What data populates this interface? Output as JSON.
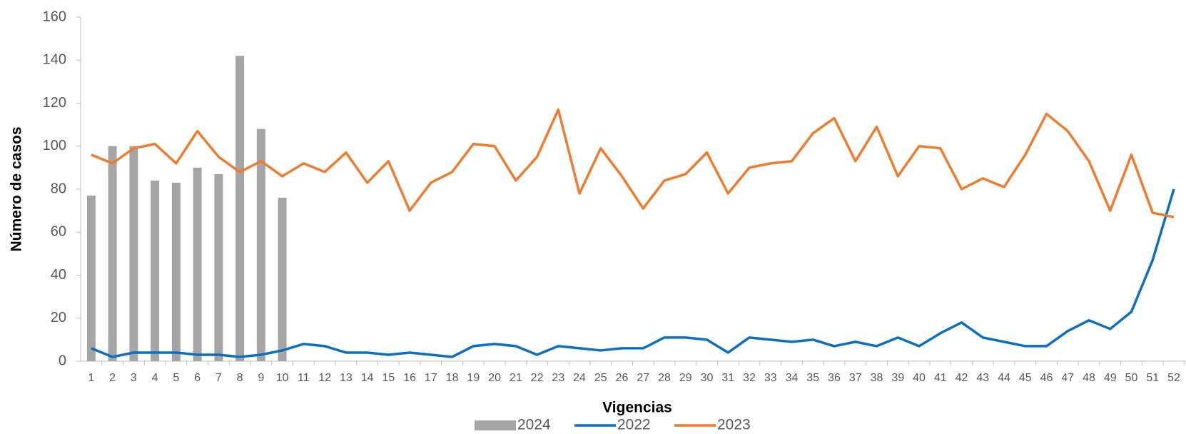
{
  "chart_data": {
    "type": "bar-line",
    "x_label": "Vigencias",
    "y_label": "Número de casos",
    "categories": [
      1,
      2,
      3,
      4,
      5,
      6,
      7,
      8,
      9,
      10,
      11,
      12,
      13,
      14,
      15,
      16,
      17,
      18,
      19,
      20,
      21,
      22,
      23,
      24,
      25,
      26,
      27,
      28,
      29,
      30,
      31,
      32,
      33,
      34,
      35,
      36,
      37,
      38,
      39,
      40,
      41,
      42,
      43,
      44,
      45,
      46,
      47,
      48,
      49,
      50,
      51,
      52
    ],
    "series": [
      {
        "name": "2024",
        "type": "bar",
        "color": "#a5a5a5",
        "values": [
          77,
          100,
          100,
          84,
          83,
          90,
          87,
          142,
          108,
          76,
          null,
          null,
          null,
          null,
          null,
          null,
          null,
          null,
          null,
          null,
          null,
          null,
          null,
          null,
          null,
          null,
          null,
          null,
          null,
          null,
          null,
          null,
          null,
          null,
          null,
          null,
          null,
          null,
          null,
          null,
          null,
          null,
          null,
          null,
          null,
          null,
          null,
          null,
          null,
          null,
          null,
          null
        ]
      },
      {
        "name": "2022",
        "type": "line",
        "color": "#0e6fc1",
        "values": [
          6,
          2,
          4,
          4,
          4,
          3,
          3,
          2,
          3,
          5,
          8,
          7,
          4,
          4,
          3,
          4,
          3,
          2,
          7,
          8,
          7,
          3,
          7,
          6,
          5,
          6,
          6,
          11,
          11,
          10,
          4,
          11,
          10,
          9,
          10,
          7,
          9,
          7,
          11,
          7,
          13,
          18,
          11,
          9,
          7,
          7,
          14,
          19,
          15,
          23,
          47,
          80
        ]
      },
      {
        "name": "2023",
        "type": "line",
        "color": "#ed7d31",
        "values": [
          96,
          92,
          99,
          101,
          92,
          107,
          95,
          88,
          93,
          86,
          92,
          88,
          97,
          83,
          93,
          70,
          83,
          88,
          101,
          100,
          84,
          95,
          117,
          78,
          99,
          86,
          71,
          84,
          87,
          97,
          78,
          90,
          92,
          93,
          106,
          113,
          93,
          109,
          86,
          100,
          99,
          80,
          85,
          81,
          96,
          115,
          107,
          93,
          70,
          96,
          69,
          67
        ]
      }
    ],
    "ylim": [
      0,
      160
    ],
    "yticks": [
      0,
      20,
      40,
      60,
      80,
      100,
      120,
      140,
      160
    ],
    "grid": false,
    "legend": "bottom"
  }
}
